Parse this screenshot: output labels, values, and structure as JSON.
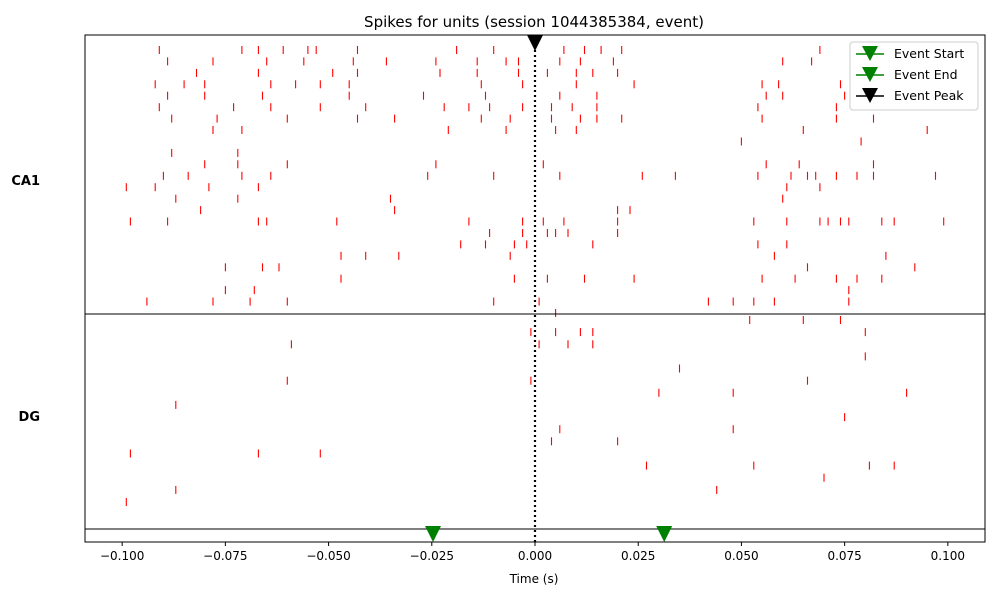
{
  "chart_data": {
    "type": "scatter",
    "title": "Spikes for units (session 1044385384, event)",
    "xlabel": "Time (s)",
    "xlim": [
      -0.109,
      0.109
    ],
    "xticks": [
      -0.1,
      -0.075,
      -0.05,
      -0.025,
      0.0,
      0.025,
      0.05,
      0.075,
      0.1
    ],
    "xtick_labels": [
      "−0.100",
      "−0.075",
      "−0.050",
      "−0.025",
      "0.000",
      "0.025",
      "0.050",
      "0.075",
      "0.100"
    ],
    "grid": false,
    "region_labels": [
      "CA1",
      "DG"
    ],
    "legend": {
      "position": "top-right",
      "entries": [
        {
          "label": "Event Start",
          "color": "#008000",
          "marker": "triangle-down"
        },
        {
          "label": "Event End",
          "color": "#008000",
          "marker": "triangle-down"
        },
        {
          "label": "Event Peak",
          "color": "#000000",
          "marker": "triangle-down"
        }
      ]
    },
    "events": {
      "start": -0.0247,
      "end": 0.0313,
      "peak": 0.0
    },
    "spike_color": "#ff0000",
    "regions": [
      {
        "name": "CA1",
        "units": [
          [
            -0.091,
            -0.071,
            -0.067,
            -0.061,
            -0.055,
            -0.053,
            -0.043,
            -0.019,
            -0.01,
            0.007,
            0.012,
            0.016,
            0.021,
            0.069
          ],
          [
            -0.089,
            -0.078,
            -0.065,
            -0.056,
            -0.044,
            -0.036,
            -0.024,
            -0.014,
            -0.007,
            -0.004,
            0.006,
            0.011,
            0.019,
            0.06,
            0.067
          ],
          [
            -0.082,
            -0.067,
            -0.049,
            -0.043,
            -0.023,
            -0.014,
            -0.004,
            0.003,
            0.01,
            0.014,
            0.02
          ],
          [
            -0.092,
            -0.085,
            -0.08,
            -0.064,
            -0.058,
            -0.052,
            -0.045,
            -0.013,
            -0.003,
            0.01,
            0.024,
            0.055,
            0.059,
            0.074
          ],
          [
            -0.089,
            -0.08,
            -0.066,
            -0.045,
            -0.027,
            -0.012,
            0.006,
            0.015,
            0.056,
            0.06,
            0.075
          ],
          [
            -0.091,
            -0.073,
            -0.064,
            -0.052,
            -0.041,
            -0.022,
            -0.016,
            -0.011,
            -0.003,
            0.004,
            0.009,
            0.015,
            0.054,
            0.073
          ],
          [
            -0.088,
            -0.077,
            -0.06,
            -0.043,
            -0.034,
            -0.013,
            -0.006,
            0.004,
            0.011,
            0.015,
            0.021,
            0.055,
            0.073,
            0.082
          ],
          [
            -0.078,
            -0.071,
            -0.021,
            -0.007,
            0.005,
            0.01,
            0.065,
            0.095
          ],
          [
            0.05,
            0.079
          ],
          [
            -0.088,
            -0.072
          ],
          [
            -0.08,
            -0.072,
            -0.06,
            -0.024,
            0.002,
            0.056,
            0.064,
            0.082
          ],
          [
            -0.09,
            -0.084,
            -0.071,
            -0.064,
            -0.026,
            -0.01,
            0.006,
            0.026,
            0.034,
            0.054,
            0.062,
            0.066,
            0.068,
            0.073,
            0.078,
            0.082,
            0.097
          ],
          [
            -0.099,
            -0.092,
            -0.079,
            -0.067,
            0.061,
            0.069
          ],
          [
            -0.087,
            -0.072,
            -0.035,
            0.06
          ],
          [
            -0.081,
            -0.034,
            0.02,
            0.023
          ],
          [
            -0.098,
            -0.089,
            -0.067,
            -0.065,
            -0.048,
            -0.016,
            -0.003,
            0.002,
            0.007,
            0.02,
            0.053,
            0.061,
            0.069,
            0.071,
            0.074,
            0.076,
            0.084,
            0.087,
            0.099
          ],
          [
            -0.011,
            -0.003,
            0.003,
            0.005,
            0.008,
            0.02
          ],
          [
            -0.018,
            -0.012,
            -0.005,
            -0.002,
            0.014,
            0.054,
            0.061
          ],
          [
            -0.047,
            -0.041,
            -0.033,
            -0.006,
            0.058,
            0.085
          ],
          [
            -0.066,
            -0.075,
            -0.062,
            0.066,
            0.092
          ],
          [
            -0.047,
            -0.005,
            0.003,
            0.012,
            0.024,
            0.055,
            0.063,
            0.073,
            0.078,
            0.084
          ],
          [
            -0.075,
            -0.068,
            0.076
          ],
          [
            -0.094,
            -0.078,
            -0.069,
            -0.06,
            -0.01,
            0.001,
            0.042,
            0.048,
            0.053,
            0.058,
            0.076
          ],
          [
            0.005
          ]
        ]
      },
      {
        "name": "DG",
        "units": [
          [
            0.052,
            0.065,
            0.074
          ],
          [
            -0.001,
            0.005,
            0.011,
            0.014,
            0.08
          ],
          [
            -0.059,
            0.001,
            0.008,
            0.014
          ],
          [
            0.08
          ],
          [
            0.035
          ],
          [
            -0.06,
            -0.001,
            0.066
          ],
          [
            0.03,
            0.048,
            0.09
          ],
          [
            -0.087
          ],
          [
            0.075
          ],
          [
            0.006,
            0.048
          ],
          [
            0.004,
            0.02
          ],
          [
            -0.098,
            -0.067,
            -0.052
          ],
          [
            0.027,
            0.053,
            0.081,
            0.087
          ],
          [
            0.07
          ],
          [
            -0.087,
            0.044
          ],
          [
            -0.099
          ]
        ]
      }
    ]
  }
}
